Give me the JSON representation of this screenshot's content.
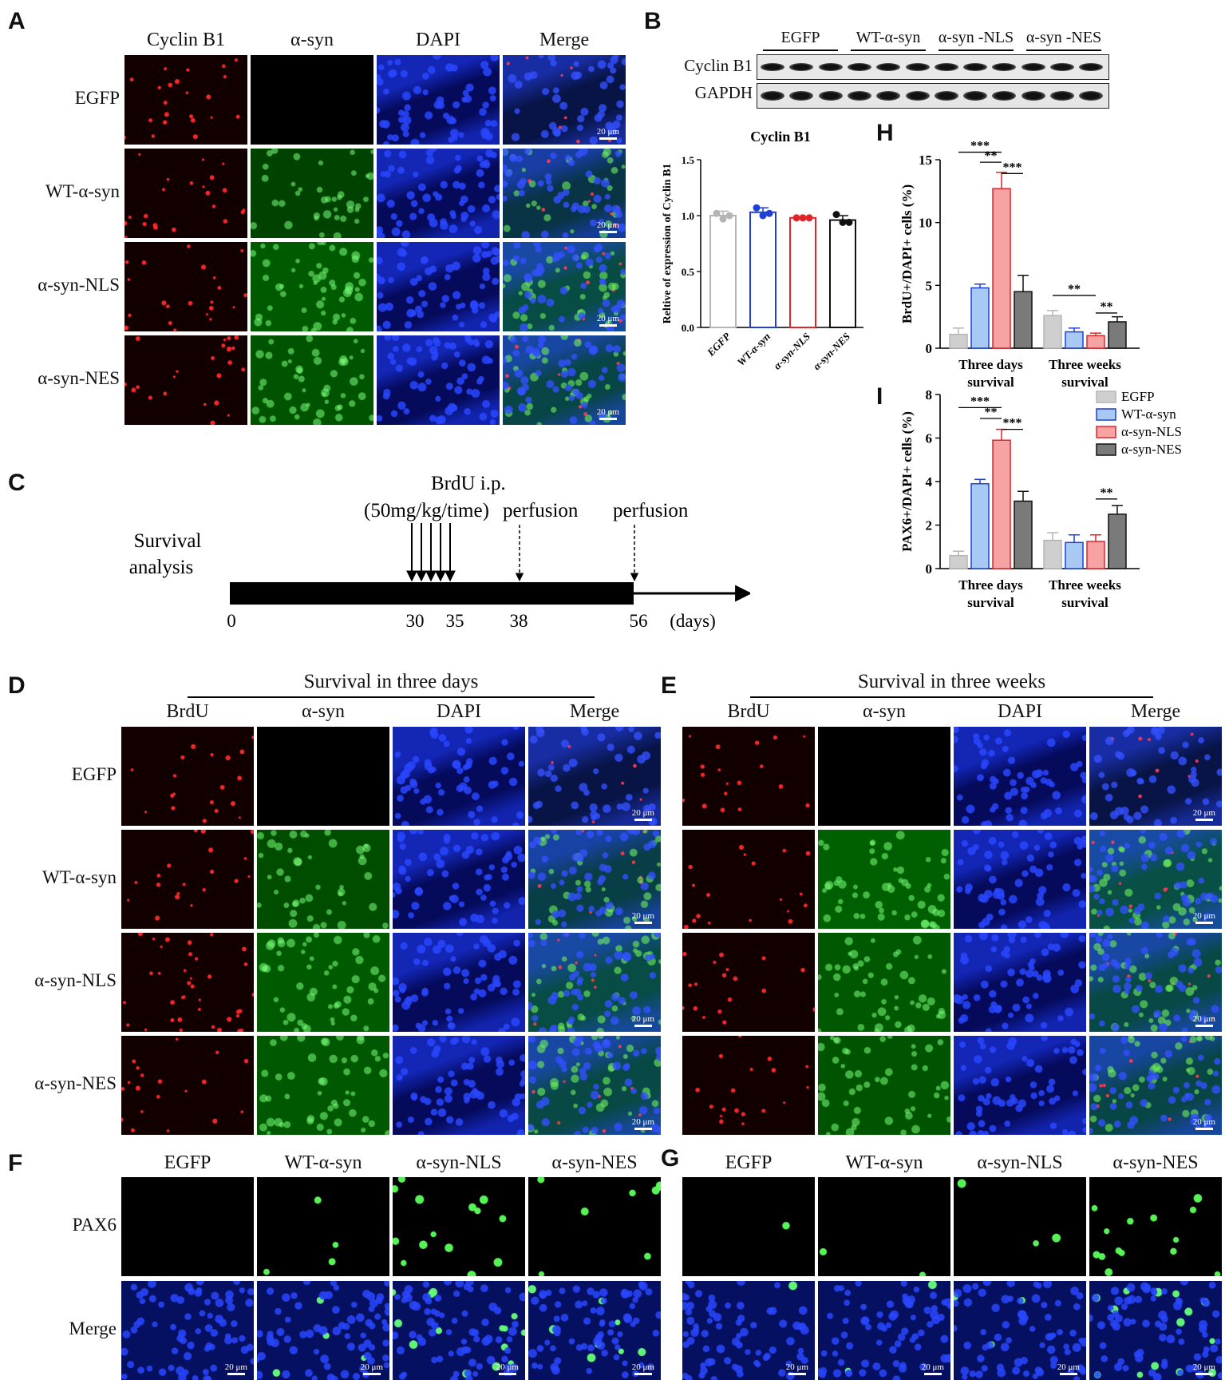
{
  "letters": {
    "A": "A",
    "B": "B",
    "C": "C",
    "D": "D",
    "E": "E",
    "F": "F",
    "G": "G",
    "H": "H",
    "I": "I"
  },
  "scale_bar": "20 μm",
  "panelA": {
    "cols": [
      "Cyclin B1",
      "α-syn",
      "DAPI",
      "Merge"
    ],
    "rows": [
      "EGFP",
      "WT-α-syn",
      "α-syn-NLS",
      "α-syn-NES"
    ]
  },
  "panelB": {
    "groups": [
      "EGFP",
      "WT-α-syn",
      "α-syn -NLS",
      "α-syn -NES"
    ],
    "bands": [
      "Cyclin B1",
      "GAPDH"
    ]
  },
  "panelC": {
    "brdu": "BrdU i.p.",
    "dose": "(50mg/kg/time)",
    "perfusion1": "perfusion",
    "perfusion2": "perfusion",
    "survival1": "Survival",
    "survival2": "analysis",
    "t0": "0",
    "t30": "30",
    "t35": "35",
    "t38": "38",
    "t56": "56",
    "unit": "(days)"
  },
  "panelD": {
    "title": "Survival in three days",
    "cols": [
      "BrdU",
      "α-syn",
      "DAPI",
      "Merge"
    ],
    "rows": [
      "EGFP",
      "WT-α-syn",
      "α-syn-NLS",
      "α-syn-NES"
    ]
  },
  "panelE": {
    "title": "Survival in three weeks",
    "cols": [
      "BrdU",
      "α-syn",
      "DAPI",
      "Merge"
    ]
  },
  "panelF": {
    "cols": [
      "EGFP",
      "WT-α-syn",
      "α-syn-NLS",
      "α-syn-NES"
    ],
    "rows": [
      "PAX6",
      "Merge"
    ]
  },
  "panelG": {
    "cols": [
      "EGFP",
      "WT-α-syn",
      "α-syn-NLS",
      "α-syn-NES"
    ]
  },
  "colors": {
    "EGFP": "#cfcfcf",
    "WT": "#a9c9f5",
    "NLS": "#f7a3a3",
    "NES": "#7a7a7a",
    "edgeEGFP": "#b5b5b5",
    "edgeWT": "#1f3fd6",
    "edgeNLS": "#e0252a",
    "edgeNES": "#111111"
  },
  "chart_data": [
    {
      "id": "B-bar",
      "type": "bar",
      "title": "Cyclin B1",
      "ylabel": "Reltive of expression of Cyclin B1",
      "categories": [
        "EGFP",
        "WT-α-syn",
        "α-syn-NLS",
        "α-syn-NES"
      ],
      "values": [
        1.0,
        1.03,
        0.98,
        0.96
      ],
      "errors": [
        0.04,
        0.04,
        0.01,
        0.04
      ],
      "points": [
        [
          1.02,
          0.97,
          1.0
        ],
        [
          1.07,
          1.0,
          1.02
        ],
        [
          0.98,
          0.98,
          0.98
        ],
        [
          1.01,
          0.94,
          0.94
        ]
      ],
      "ylim": [
        0,
        1.5
      ],
      "yticks": [
        "0.0",
        "0.5",
        "1.0",
        "1.5"
      ]
    },
    {
      "id": "H",
      "type": "bar",
      "ylabel": "BrdU+/DAPI+ cells (%)",
      "categories": [
        "Three days survival",
        "Three weeks survival"
      ],
      "series": [
        {
          "name": "EGFP",
          "values": [
            1.1,
            2.6
          ],
          "errors": [
            0.5,
            0.4
          ]
        },
        {
          "name": "WT-α-syn",
          "values": [
            4.8,
            1.3
          ],
          "errors": [
            0.3,
            0.3
          ]
        },
        {
          "name": "α-syn-NLS",
          "values": [
            12.7,
            1.0
          ],
          "errors": [
            1.3,
            0.2
          ]
        },
        {
          "name": "α-syn-NES",
          "values": [
            4.5,
            2.1
          ],
          "errors": [
            1.3,
            0.4
          ]
        }
      ],
      "ylim": [
        0,
        15
      ],
      "yticks": [
        "0",
        "5",
        "10",
        "15"
      ],
      "annotations": [
        "***",
        "**",
        "***",
        "**",
        "**"
      ]
    },
    {
      "id": "I",
      "type": "bar",
      "ylabel": "PAX6+/DAPI+ cells (%)",
      "categories": [
        "Three days survival",
        "Three weeks survival"
      ],
      "series": [
        {
          "name": "EGFP",
          "values": [
            0.6,
            1.3
          ],
          "errors": [
            0.2,
            0.35
          ]
        },
        {
          "name": "WT-α-syn",
          "values": [
            3.9,
            1.2
          ],
          "errors": [
            0.2,
            0.35
          ]
        },
        {
          "name": "α-syn-NLS",
          "values": [
            5.9,
            1.25
          ],
          "errors": [
            0.5,
            0.3
          ]
        },
        {
          "name": "α-syn-NES",
          "values": [
            3.1,
            2.5
          ],
          "errors": [
            0.45,
            0.4
          ]
        }
      ],
      "ylim": [
        0,
        8
      ],
      "yticks": [
        "0",
        "2",
        "4",
        "6",
        "8"
      ],
      "annotations": [
        "***",
        "**",
        "***",
        "**"
      ],
      "legend": [
        "EGFP",
        "WT-α-syn",
        "α-syn-NLS",
        "α-syn-NES"
      ],
      "legend_position": "top-right"
    }
  ]
}
